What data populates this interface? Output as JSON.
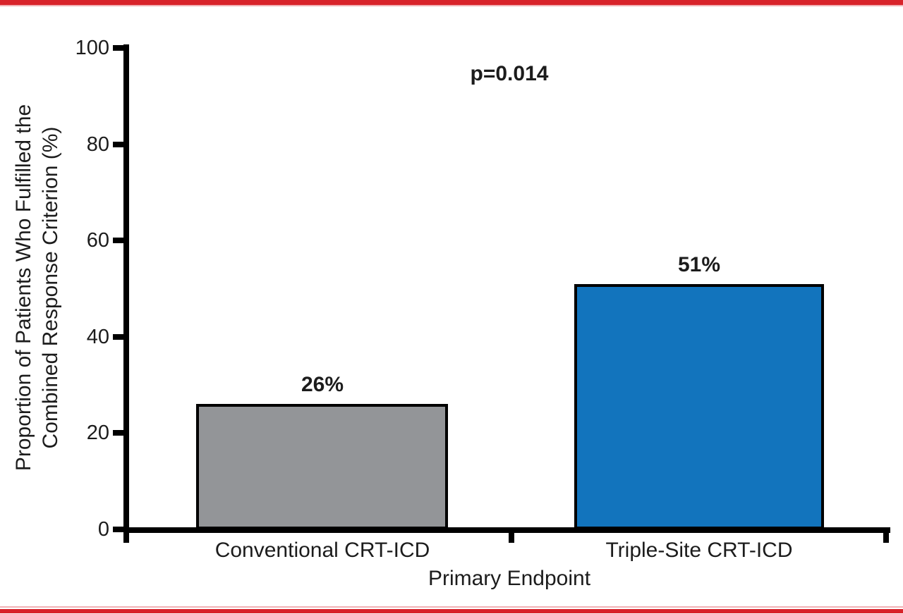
{
  "figure": {
    "background": "#ffffff",
    "accent_red": "#d8232a",
    "axis_color": "#000000",
    "text_color": "#1c1c1c"
  },
  "chart_data": {
    "type": "bar",
    "title": "",
    "annotation": "p=0.014",
    "categories": [
      "Conventional CRT-ICD",
      "Triple-Site CRT-ICD"
    ],
    "values": [
      26,
      51
    ],
    "bar_labels": [
      "26%",
      "51%"
    ],
    "bar_colors": [
      "#939598",
      "#1274bd"
    ],
    "xlabel": "Primary Endpoint",
    "ylabel": "Proportion of Patients Who Fulfilled the\nCombined Response Criterion (%)",
    "ylabel_line1": "Proportion of Patients Who Fulfilled the",
    "ylabel_line2": "Combined Response Criterion (%)",
    "ylim": [
      0,
      100
    ],
    "yticks": [
      100,
      80,
      60,
      40,
      20,
      0
    ],
    "ytick_labels": [
      "100",
      "80",
      "60",
      "40",
      "20",
      "0"
    ],
    "grid": false,
    "legend": "none"
  }
}
